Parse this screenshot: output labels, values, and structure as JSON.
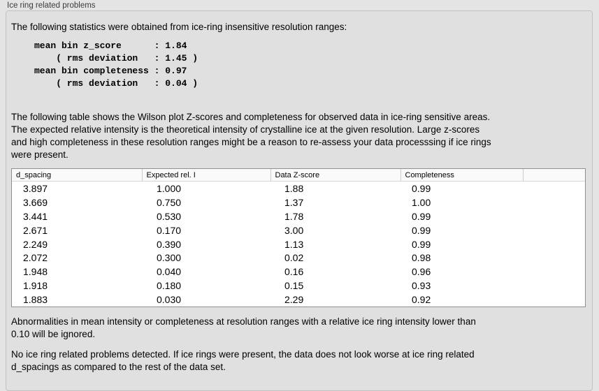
{
  "panel": {
    "title": "Ice ring related problems",
    "intro": "The following statistics were obtained from ice-ring insensitive resolution ranges:",
    "stats_block": "mean bin z_score      : 1.84\n    ( rms deviation   : 1.45 )\nmean bin completeness : 0.97\n    ( rms deviation   : 0.04 )",
    "table_note": "The following table shows the Wilson plot Z-scores and completeness for observed data in ice-ring sensitive areas.\nThe expected relative intensity is the theoretical intensity of crystalline ice at the given resolution. Large z-scores\nand high completeness in these resolution ranges might be a reason to re-assess your data processsing if ice rings\nwere present.",
    "footnote": "Abnormalities in mean intensity or completeness at resolution ranges with a relative ice ring intensity lower than\n0.10 will be ignored.",
    "conclusion": "No ice ring related problems detected. If ice rings were present, the data does not look worse at ice ring related\nd_spacings as compared to the rest of the data set."
  },
  "table": {
    "columns": [
      "d_spacing",
      "Expected rel. I",
      "Data Z-score",
      "Completeness",
      ""
    ],
    "rows": [
      [
        "3.897",
        "1.000",
        "1.88",
        "0.99"
      ],
      [
        "3.669",
        "0.750",
        "1.37",
        "1.00"
      ],
      [
        "3.441",
        "0.530",
        "1.78",
        "0.99"
      ],
      [
        "2.671",
        "0.170",
        "3.00",
        "0.99"
      ],
      [
        "2.249",
        "0.390",
        "1.13",
        "0.99"
      ],
      [
        "2.072",
        "0.300",
        "0.02",
        "0.98"
      ],
      [
        "1.948",
        "0.040",
        "0.16",
        "0.96"
      ],
      [
        "1.918",
        "0.180",
        "0.15",
        "0.93"
      ],
      [
        "1.883",
        "0.030",
        "2.29",
        "0.92"
      ]
    ]
  },
  "colors": {
    "page_background": "#e4e4e4",
    "groupbox_background": "#e0e0e0",
    "groupbox_border": "#c2c2c2",
    "table_border": "#8f8f8f",
    "table_header_background": "#fafafa",
    "text": "#000000"
  }
}
